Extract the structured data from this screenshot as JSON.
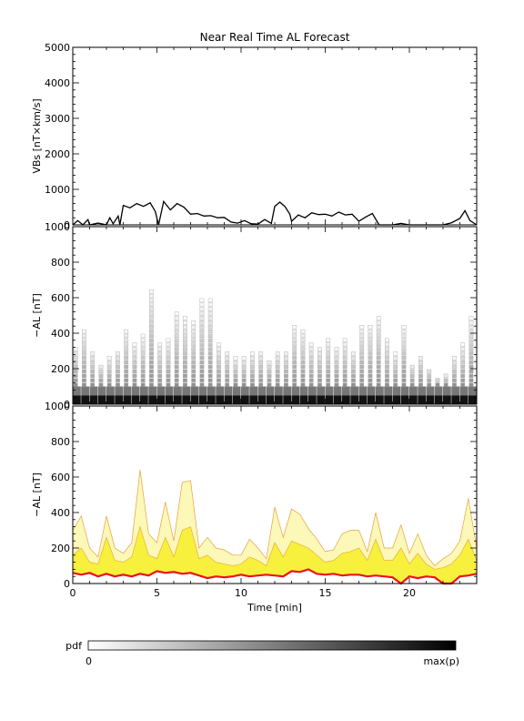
{
  "figure": {
    "title": "Near Real Time AL Forecast",
    "xlabel": "Time [min]",
    "colorbar_label": "pdf",
    "colorbar_min": "0",
    "colorbar_max": "max(p)"
  },
  "colors": {
    "vbs_line": "#000000",
    "median_line": "#e8141a",
    "band_fill": "#f7f03c",
    "band_light": "#fbf8b8",
    "band_edge": "#e8a040"
  },
  "chart_data": [
    {
      "type": "line",
      "panel": "vbs",
      "ylabel": "VBs [nT×km/s]",
      "xlim": [
        0,
        24
      ],
      "ylim": [
        0,
        5000
      ],
      "xticks": [
        0,
        5,
        10,
        15,
        20
      ],
      "yticks": [
        0,
        1000,
        2000,
        3000,
        4000,
        5000
      ],
      "x": [
        0,
        0.3,
        0.6,
        0.9,
        1.0,
        1.5,
        2.0,
        2.2,
        2.4,
        2.7,
        2.8,
        3.0,
        3.4,
        3.8,
        4.2,
        4.6,
        4.9,
        5.1,
        5.4,
        5.8,
        6.2,
        6.6,
        7.0,
        7.4,
        7.8,
        8.2,
        8.6,
        9.0,
        9.4,
        9.8,
        10.2,
        10.6,
        11.0,
        11.4,
        11.8,
        12.0,
        12.3,
        12.6,
        12.9,
        13.0,
        13.4,
        13.8,
        14.2,
        14.6,
        15.0,
        15.4,
        15.8,
        16.2,
        16.6,
        17.0,
        17.4,
        17.8,
        18.2,
        18.6,
        19.0,
        19.5,
        20.0,
        21.0,
        22.0,
        22.5,
        23.0,
        23.3,
        23.6,
        24.0
      ],
      "y": [
        0,
        120,
        0,
        150,
        0,
        50,
        0,
        200,
        30,
        250,
        0,
        550,
        480,
        600,
        520,
        620,
        380,
        0,
        660,
        420,
        600,
        500,
        300,
        320,
        250,
        260,
        200,
        210,
        80,
        50,
        120,
        30,
        20,
        150,
        40,
        520,
        640,
        520,
        300,
        100,
        280,
        200,
        340,
        290,
        300,
        250,
        360,
        280,
        300,
        100,
        220,
        320,
        0,
        0,
        0,
        40,
        0,
        0,
        0,
        60,
        180,
        400,
        120,
        0
      ]
    },
    {
      "type": "heatmap",
      "panel": "pdf",
      "ylabel": "−AL [nT]",
      "xlim": [
        0,
        24
      ],
      "ylim": [
        0,
        1000
      ],
      "xticks": [
        0,
        5,
        10,
        15,
        20
      ],
      "yticks": [
        0,
        200,
        400,
        600,
        800,
        1000
      ],
      "description_bins": "columns of probability density, darkest near 0–50 nT",
      "x": [
        0,
        0.5,
        1,
        1.5,
        2,
        2.5,
        3,
        3.5,
        4,
        4.5,
        5,
        5.5,
        6,
        6.5,
        7,
        7.5,
        8,
        8.5,
        9,
        9.5,
        10,
        10.5,
        11,
        11.5,
        12,
        12.5,
        13,
        13.5,
        14,
        14.5,
        15,
        15.5,
        16,
        16.5,
        17,
        17.5,
        18,
        18.5,
        19,
        19.5,
        20,
        20.5,
        21,
        21.5,
        22,
        22.5,
        23,
        23.5
      ],
      "upper": [
        320,
        420,
        300,
        220,
        260,
        300,
        420,
        340,
        380,
        650,
        340,
        360,
        520,
        480,
        460,
        580,
        580,
        330,
        300,
        260,
        260,
        280,
        300,
        250,
        300,
        300,
        440,
        420,
        340,
        320,
        360,
        320,
        360,
        300,
        440,
        450,
        500,
        360,
        280,
        440,
        220,
        270,
        200,
        140,
        160,
        260,
        330,
        500
      ]
    },
    {
      "type": "area",
      "panel": "forecast",
      "ylabel": "−AL [nT]",
      "xlim": [
        0,
        24
      ],
      "ylim": [
        0,
        1000
      ],
      "xticks": [
        0,
        5,
        10,
        15,
        20
      ],
      "yticks": [
        0,
        200,
        400,
        600,
        800,
        1000
      ],
      "x": [
        0,
        0.5,
        1,
        1.5,
        2,
        2.5,
        3,
        3.5,
        4,
        4.5,
        5,
        5.5,
        6,
        6.5,
        7,
        7.5,
        8,
        8.5,
        9,
        9.5,
        10,
        10.5,
        11,
        11.5,
        12,
        12.5,
        13,
        13.5,
        14,
        14.5,
        15,
        15.5,
        16,
        16.5,
        17,
        17.5,
        18,
        18.5,
        19,
        19.5,
        20,
        20.5,
        21,
        21.5,
        22,
        22.5,
        23,
        23.5,
        24
      ],
      "median": [
        60,
        50,
        60,
        40,
        55,
        40,
        50,
        40,
        55,
        45,
        70,
        60,
        65,
        55,
        60,
        45,
        30,
        40,
        35,
        40,
        50,
        40,
        45,
        50,
        45,
        40,
        70,
        65,
        80,
        55,
        50,
        55,
        45,
        50,
        50,
        40,
        45,
        40,
        35,
        0,
        40,
        30,
        40,
        35,
        0,
        0,
        40,
        45,
        55
      ],
      "band_high": [
        300,
        380,
        200,
        150,
        380,
        200,
        170,
        230,
        640,
        280,
        230,
        460,
        240,
        570,
        580,
        200,
        260,
        200,
        190,
        160,
        160,
        250,
        200,
        140,
        430,
        260,
        420,
        390,
        310,
        250,
        180,
        190,
        280,
        300,
        300,
        180,
        400,
        200,
        200,
        330,
        170,
        280,
        160,
        100,
        140,
        170,
        240,
        480,
        200
      ],
      "band_mid": [
        160,
        200,
        120,
        110,
        260,
        130,
        120,
        150,
        320,
        160,
        140,
        260,
        150,
        300,
        320,
        140,
        160,
        120,
        110,
        100,
        110,
        150,
        130,
        100,
        230,
        150,
        240,
        220,
        200,
        160,
        120,
        130,
        170,
        180,
        200,
        130,
        250,
        130,
        130,
        200,
        110,
        170,
        110,
        80,
        90,
        110,
        160,
        250,
        130
      ]
    }
  ]
}
